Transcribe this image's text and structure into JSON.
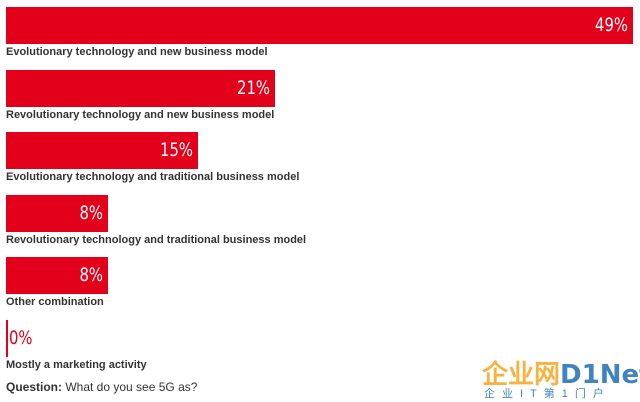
{
  "chart_data": {
    "type": "bar",
    "orientation": "horizontal",
    "categories": [
      "Evolutionary technology and new business model",
      "Revolutionary technology and new business model",
      "Evolutionary technology and traditional business model",
      "Revolutionary technology and traditional business model",
      "Other combination",
      "Mostly a marketing activity"
    ],
    "values": [
      49,
      21,
      15,
      8,
      8,
      0
    ],
    "value_labels": [
      "49%",
      "21%",
      "15%",
      "8%",
      "8%",
      "0%"
    ],
    "xlim": [
      0,
      49
    ],
    "bar_color": "#e2001a",
    "grid": false,
    "legend": "none"
  },
  "question": {
    "label": "Question:",
    "text": "What do you see 5G as?"
  },
  "watermark": {
    "main_cn": "企业网",
    "main_en": "D1Net",
    "sub": "企业IT第1门户"
  }
}
